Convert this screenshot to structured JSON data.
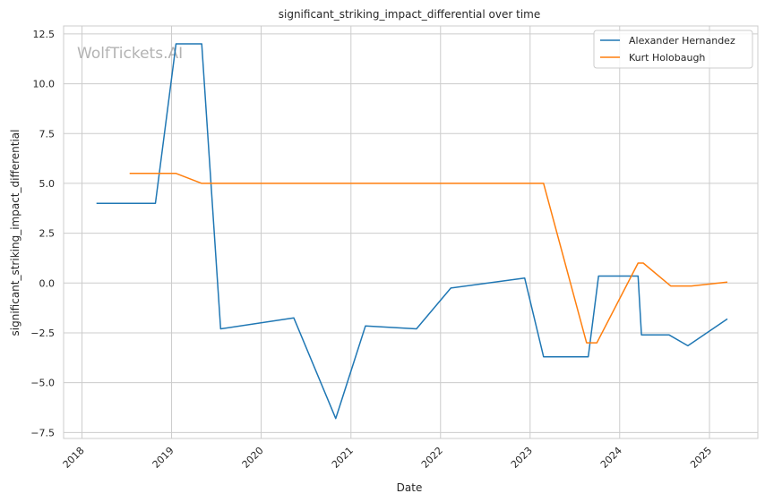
{
  "chart_data": {
    "type": "line",
    "title": "significant_striking_impact_differential over time",
    "xlabel": "Date",
    "ylabel": "significant_striking_impact_differential",
    "watermark": "WolfTickets.AI",
    "xlim": [
      "2017-10-18",
      "2025-07-17"
    ],
    "ylim": [
      -7.8,
      12.9
    ],
    "x_ticks": [
      "2018",
      "2019",
      "2020",
      "2021",
      "2022",
      "2023",
      "2024",
      "2025"
    ],
    "y_ticks": [
      "12.5",
      "10.0",
      "7.5",
      "5.0",
      "2.5",
      "0.0",
      "−2.5",
      "−5.0",
      "−7.5"
    ],
    "grid": true,
    "legend_position": "top-right",
    "series": [
      {
        "name": "Alexander Hernandez",
        "color": "#1f77b4",
        "points": [
          [
            "2018-03-01",
            4.0
          ],
          [
            "2018-10-27",
            4.0
          ],
          [
            "2019-01-19",
            12.0
          ],
          [
            "2019-05-04",
            12.0
          ],
          [
            "2019-07-20",
            -2.3
          ],
          [
            "2020-05-13",
            -1.75
          ],
          [
            "2020-10-31",
            -6.8
          ],
          [
            "2021-03-01",
            -2.15
          ],
          [
            "2021-09-25",
            -2.3
          ],
          [
            "2022-02-12",
            -0.25
          ],
          [
            "2022-12-10",
            0.25
          ],
          [
            "2023-02-25",
            -3.7
          ],
          [
            "2023-08-26",
            -3.7
          ],
          [
            "2023-10-07",
            0.35
          ],
          [
            "2024-03-16",
            0.35
          ],
          [
            "2024-03-30",
            -2.6
          ],
          [
            "2024-07-20",
            -2.6
          ],
          [
            "2024-10-05",
            -3.15
          ],
          [
            "2025-03-15",
            -1.8
          ]
        ]
      },
      {
        "name": "Kurt Holobaugh",
        "color": "#ff7f0e",
        "points": [
          [
            "2018-07-14",
            5.5
          ],
          [
            "2019-01-19",
            5.5
          ],
          [
            "2019-05-04",
            5.0
          ],
          [
            "2023-02-25",
            5.0
          ],
          [
            "2023-08-19",
            -3.0
          ],
          [
            "2023-09-30",
            -3.0
          ],
          [
            "2024-03-16",
            1.0
          ],
          [
            "2024-04-06",
            1.0
          ],
          [
            "2024-07-27",
            -0.15
          ],
          [
            "2024-10-19",
            -0.15
          ],
          [
            "2025-03-15",
            0.05
          ]
        ]
      }
    ]
  }
}
